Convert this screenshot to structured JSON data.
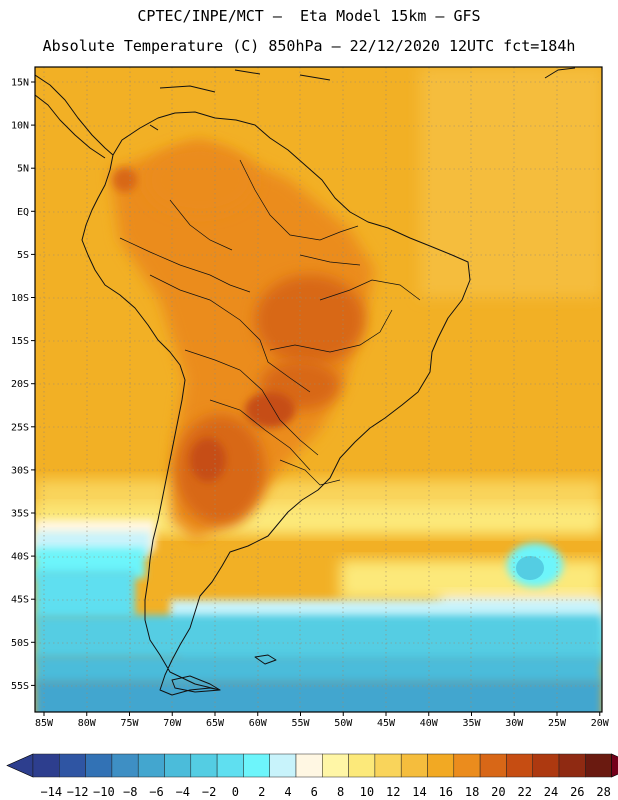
{
  "title_line1": "CPTEC/INPE/MCT –  Eta Model 15km – GFS",
  "title_line2": "Absolute Temperature (C) 850hPa – 22/12/2020 12UTC fct=184h",
  "lat_labels": [
    "15N",
    "10N",
    "5N",
    "EQ",
    "5S",
    "10S",
    "15S",
    "20S",
    "25S",
    "30S",
    "35S",
    "40S",
    "45S",
    "50S",
    "55S"
  ],
  "lon_labels": [
    "85W",
    "80W",
    "75W",
    "70W",
    "65W",
    "60W",
    "55W",
    "50W",
    "45W",
    "40W",
    "35W",
    "30W",
    "25W",
    "20W"
  ],
  "colorbar": {
    "labels": [
      "-14",
      "-12",
      "-10",
      "-8",
      "-6",
      "-4",
      "-2",
      "0",
      "2",
      "4",
      "6",
      "8",
      "10",
      "12",
      "14",
      "16",
      "18",
      "20",
      "22",
      "24",
      "26",
      "28"
    ],
    "colors": [
      "#2d3e8e",
      "#2f55a3",
      "#3272b5",
      "#3e8fc4",
      "#43a6cf",
      "#4bbcda",
      "#54cde3",
      "#5fdff0",
      "#6df5fb",
      "#c8f3fb",
      "#fff7e3",
      "#fff6a6",
      "#fce97a",
      "#f9d45b",
      "#f5bd3d",
      "#f2a923",
      "#eb8c1d",
      "#d86717",
      "#c64d12",
      "#ad3910",
      "#8f2a12",
      "#6a1a10"
    ],
    "low_color": "#2d3e8e",
    "high_color": "#73001a"
  }
}
